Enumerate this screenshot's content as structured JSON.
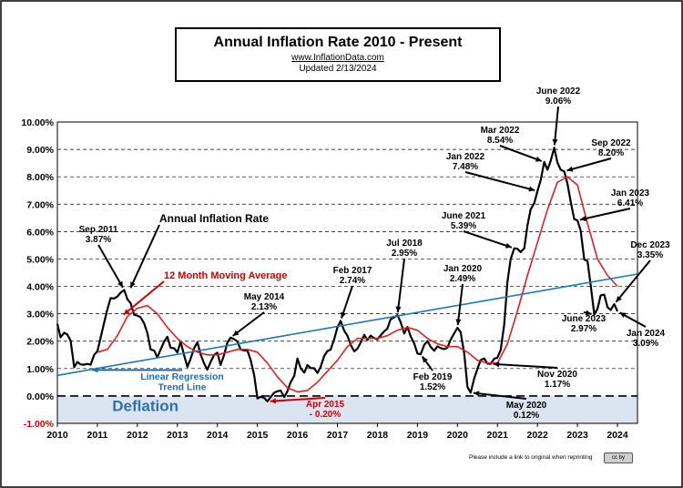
{
  "chart_data": {
    "type": "line",
    "title": "Annual  Inflation Rate 2010 - Present",
    "source": "www.InflationData.com",
    "updated": "Updated   2/13/2024",
    "footnote": "Please include a link to original when reprinting",
    "ylim": [
      -1,
      10
    ],
    "xlim": [
      2010,
      2024.5
    ],
    "yticks": [
      "-1.00%",
      "0.00%",
      "1.00%",
      "2.00%",
      "3.00%",
      "4.00%",
      "5.00%",
      "6.00%",
      "7.00%",
      "8.00%",
      "9.00%",
      "10.00%"
    ],
    "xticks": [
      "2010",
      "2011",
      "2012",
      "2013",
      "2014",
      "2015",
      "2016",
      "2017",
      "2018",
      "2019",
      "2020",
      "2021",
      "2022",
      "2023",
      "2024"
    ],
    "deflation_label": "Deflation",
    "series": [
      {
        "name": "Annual Inflation Rate",
        "color": "#000000",
        "x": [
          2010.0,
          2010.08,
          2010.17,
          2010.25,
          2010.33,
          2010.42,
          2010.5,
          2010.58,
          2010.67,
          2010.75,
          2010.83,
          2010.92,
          2011.0,
          2011.08,
          2011.17,
          2011.25,
          2011.33,
          2011.42,
          2011.5,
          2011.58,
          2011.67,
          2011.75,
          2011.83,
          2011.92,
          2012.0,
          2012.08,
          2012.17,
          2012.25,
          2012.33,
          2012.42,
          2012.5,
          2012.58,
          2012.67,
          2012.75,
          2012.83,
          2012.92,
          2013.0,
          2013.08,
          2013.17,
          2013.25,
          2013.33,
          2013.42,
          2013.5,
          2013.58,
          2013.67,
          2013.75,
          2013.83,
          2013.92,
          2014.0,
          2014.08,
          2014.17,
          2014.25,
          2014.33,
          2014.42,
          2014.5,
          2014.58,
          2014.67,
          2014.75,
          2014.83,
          2014.92,
          2015.0,
          2015.08,
          2015.17,
          2015.25,
          2015.33,
          2015.42,
          2015.5,
          2015.58,
          2015.67,
          2015.75,
          2015.83,
          2015.92,
          2016.0,
          2016.08,
          2016.17,
          2016.25,
          2016.33,
          2016.42,
          2016.5,
          2016.58,
          2016.67,
          2016.75,
          2016.83,
          2016.92,
          2017.0,
          2017.08,
          2017.17,
          2017.25,
          2017.33,
          2017.42,
          2017.5,
          2017.58,
          2017.67,
          2017.75,
          2017.83,
          2017.92,
          2018.0,
          2018.08,
          2018.17,
          2018.25,
          2018.33,
          2018.42,
          2018.5,
          2018.58,
          2018.67,
          2018.75,
          2018.83,
          2018.92,
          2019.0,
          2019.08,
          2019.17,
          2019.25,
          2019.33,
          2019.42,
          2019.5,
          2019.58,
          2019.67,
          2019.75,
          2019.83,
          2019.92,
          2020.0,
          2020.08,
          2020.17,
          2020.25,
          2020.33,
          2020.42,
          2020.5,
          2020.58,
          2020.67,
          2020.75,
          2020.83,
          2020.92,
          2021.0,
          2021.08,
          2021.17,
          2021.25,
          2021.33,
          2021.42,
          2021.5,
          2021.58,
          2021.67,
          2021.75,
          2021.83,
          2021.92,
          2022.0,
          2022.08,
          2022.17,
          2022.25,
          2022.33,
          2022.42,
          2022.5,
          2022.58,
          2022.67,
          2022.75,
          2022.83,
          2022.92,
          2023.0,
          2023.08,
          2023.17,
          2023.25,
          2023.33,
          2023.42,
          2023.5,
          2023.58,
          2023.67,
          2023.75,
          2023.83,
          2023.92,
          2024.0
        ],
        "values": [
          2.63,
          2.14,
          2.31,
          2.24,
          2.02,
          1.05,
          1.24,
          1.15,
          1.14,
          1.17,
          1.14,
          1.5,
          1.63,
          2.11,
          2.68,
          3.16,
          3.57,
          3.56,
          3.63,
          3.77,
          3.87,
          3.53,
          3.39,
          2.96,
          2.93,
          2.87,
          2.65,
          2.3,
          1.7,
          1.66,
          1.41,
          1.69,
          1.99,
          2.16,
          1.76,
          1.74,
          1.59,
          1.98,
          1.47,
          1.06,
          1.36,
          1.75,
          1.96,
          1.52,
          1.18,
          0.96,
          1.24,
          1.5,
          1.58,
          1.13,
          1.51,
          1.95,
          2.13,
          2.07,
          1.99,
          1.7,
          1.66,
          1.66,
          1.32,
          0.76,
          -0.09,
          -0.03,
          -0.07,
          -0.2,
          -0.04,
          0.12,
          0.17,
          0.2,
          -0.04,
          0.17,
          0.5,
          0.73,
          1.37,
          1.02,
          0.85,
          1.13,
          1.02,
          1.01,
          0.84,
          1.06,
          1.46,
          1.64,
          1.69,
          2.07,
          2.5,
          2.74,
          2.38,
          2.2,
          1.87,
          1.63,
          1.73,
          1.94,
          2.23,
          2.04,
          2.2,
          2.11,
          2.07,
          2.21,
          2.36,
          2.46,
          2.8,
          2.87,
          2.95,
          2.7,
          2.28,
          2.52,
          2.18,
          1.91,
          1.55,
          1.52,
          1.86,
          2.0,
          1.79,
          1.65,
          1.81,
          1.75,
          1.71,
          1.76,
          2.05,
          2.29,
          2.49,
          2.33,
          1.54,
          0.33,
          0.12,
          0.65,
          0.99,
          1.31,
          1.37,
          1.18,
          1.17,
          1.36,
          1.4,
          1.68,
          2.62,
          4.16,
          4.99,
          5.39,
          5.37,
          5.25,
          5.39,
          6.22,
          6.81,
          7.04,
          7.48,
          7.87,
          8.54,
          8.26,
          8.58,
          9.06,
          8.52,
          8.26,
          8.2,
          7.75,
          7.11,
          6.45,
          6.41,
          6.04,
          4.98,
          4.93,
          4.05,
          2.97,
          3.18,
          3.67,
          3.7,
          3.24,
          3.14,
          3.35,
          3.09
        ]
      },
      {
        "name": "12 Month Moving Average",
        "color": "#e02020",
        "x": [
          2011.0,
          2011.25,
          2011.5,
          2011.75,
          2012.0,
          2012.25,
          2012.5,
          2012.75,
          2013.0,
          2013.25,
          2013.5,
          2013.75,
          2014.0,
          2014.25,
          2014.5,
          2014.75,
          2015.0,
          2015.25,
          2015.5,
          2015.75,
          2016.0,
          2016.25,
          2016.5,
          2016.75,
          2017.0,
          2017.25,
          2017.5,
          2017.75,
          2018.0,
          2018.25,
          2018.5,
          2018.75,
          2019.0,
          2019.25,
          2019.5,
          2019.75,
          2020.0,
          2020.25,
          2020.5,
          2020.75,
          2021.0,
          2021.25,
          2021.5,
          2021.75,
          2022.0,
          2022.25,
          2022.5,
          2022.75,
          2023.0,
          2023.25,
          2023.5,
          2023.75,
          2024.0
        ],
        "values": [
          1.6,
          1.7,
          2.2,
          2.9,
          3.2,
          3.3,
          3.0,
          2.5,
          2.1,
          1.8,
          1.6,
          1.5,
          1.5,
          1.6,
          1.7,
          1.7,
          1.6,
          1.2,
          0.7,
          0.3,
          0.15,
          0.2,
          0.5,
          0.9,
          1.3,
          1.8,
          2.1,
          2.1,
          2.1,
          2.2,
          2.4,
          2.5,
          2.4,
          2.1,
          1.9,
          1.8,
          1.8,
          1.6,
          1.3,
          1.2,
          1.2,
          1.9,
          3.1,
          4.4,
          5.6,
          6.8,
          7.8,
          8.0,
          7.7,
          6.3,
          5.0,
          4.4,
          4.0
        ]
      },
      {
        "name": "Linear Regression Trend Line",
        "color": "#1f77b4",
        "x": [
          2010.0,
          2024.5
        ],
        "values": [
          0.75,
          4.45
        ]
      }
    ],
    "annotations": [
      {
        "text": "Annual Inflation Rate",
        "ax": 2011.8,
        "ay": 3.85
      },
      {
        "text": "12 Month Moving Average",
        "ax": 2011.6,
        "ay": 2.9
      },
      {
        "text": "Linear Regression\nTrend Line",
        "ax": 2010.8,
        "ay": 0.95
      },
      {
        "text": "Sep 2011\n3.87%",
        "ax": 2011.67,
        "ay": 3.87
      },
      {
        "text": "May 2014\n2.13%",
        "ax": 2014.33,
        "ay": 2.13
      },
      {
        "text": "Apr 2015\n- 0.20%",
        "ax": 2015.25,
        "ay": -0.2
      },
      {
        "text": "Feb 2017\n2.74%",
        "ax": 2017.08,
        "ay": 2.74
      },
      {
        "text": "Jul 2018\n2.95%",
        "ax": 2018.5,
        "ay": 2.95
      },
      {
        "text": "Feb 2019\n1.52%",
        "ax": 2019.08,
        "ay": 1.52
      },
      {
        "text": "Jan 2020\n2.49%",
        "ax": 2020.0,
        "ay": 2.49
      },
      {
        "text": "May 2020\n0.12%",
        "ax": 2020.33,
        "ay": 0.12
      },
      {
        "text": "Nov 2020\n1.17%",
        "ax": 2020.83,
        "ay": 1.17
      },
      {
        "text": "June 2021\n5.39%",
        "ax": 2021.42,
        "ay": 5.39
      },
      {
        "text": "Jan 2022\n7.48%",
        "ax": 2022.0,
        "ay": 7.48
      },
      {
        "text": "Mar 2022\n8.54%",
        "ax": 2022.17,
        "ay": 8.54
      },
      {
        "text": "June 2022\n9.06%",
        "ax": 2022.42,
        "ay": 9.06
      },
      {
        "text": "Sep 2022\n8.20%",
        "ax": 2022.67,
        "ay": 8.2
      },
      {
        "text": "Jan 2023\n6.41%",
        "ax": 2023.0,
        "ay": 6.41
      },
      {
        "text": "June 2023\n2.97%",
        "ax": 2023.42,
        "ay": 2.97
      },
      {
        "text": "Dec 2023\n3.35%",
        "ax": 2023.92,
        "ay": 3.35
      },
      {
        "text": "Jan 2024\n3.09%",
        "ax": 2024.0,
        "ay": 3.09
      }
    ]
  }
}
